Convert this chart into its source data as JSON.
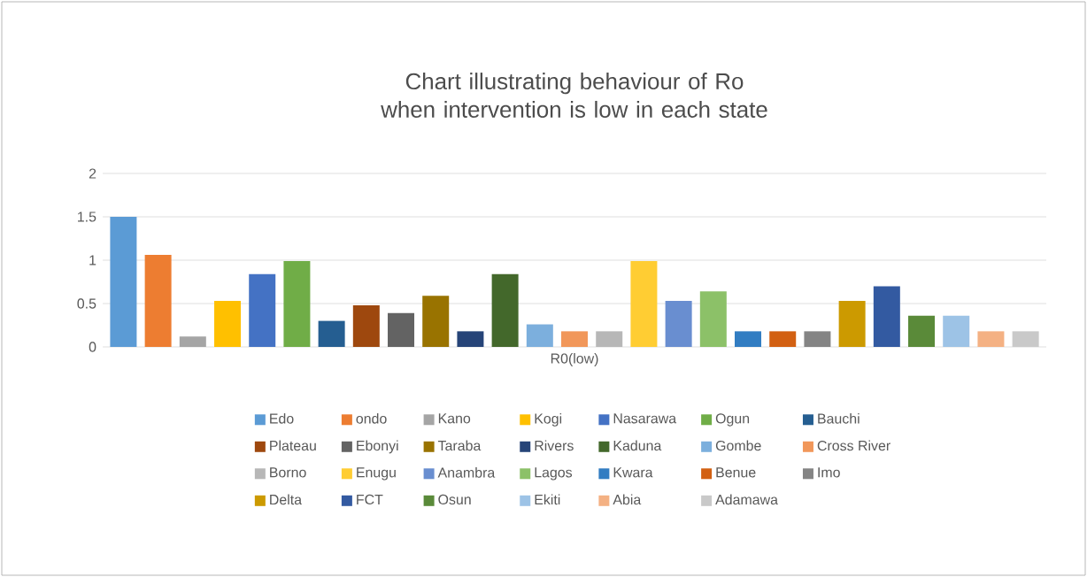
{
  "chart_data": {
    "type": "bar",
    "title": "Chart illustrating behaviour of Ro when intervention is low in each state",
    "categories": [
      "R0(low)"
    ],
    "series": [
      {
        "name": "Edo",
        "color": "#5b9bd5",
        "values": [
          1.5
        ]
      },
      {
        "name": "ondo",
        "color": "#ed7d31",
        "values": [
          1.06
        ]
      },
      {
        "name": "Kano",
        "color": "#a5a5a5",
        "values": [
          0.12
        ]
      },
      {
        "name": "Kogi",
        "color": "#ffc000",
        "values": [
          0.53
        ]
      },
      {
        "name": "Nasarawa",
        "color": "#4472c4",
        "values": [
          0.84
        ]
      },
      {
        "name": "Ogun",
        "color": "#70ad47",
        "values": [
          0.99
        ]
      },
      {
        "name": "Bauchi",
        "color": "#255e91",
        "values": [
          0.3
        ]
      },
      {
        "name": "Plateau",
        "color": "#9e480e",
        "values": [
          0.48
        ]
      },
      {
        "name": "Ebonyi",
        "color": "#636363",
        "values": [
          0.39
        ]
      },
      {
        "name": "Taraba",
        "color": "#997300",
        "values": [
          0.59
        ]
      },
      {
        "name": "Rivers",
        "color": "#264478",
        "values": [
          0.18
        ]
      },
      {
        "name": "Kaduna",
        "color": "#43682b",
        "values": [
          0.84
        ]
      },
      {
        "name": "Gombe",
        "color": "#7cafdd",
        "values": [
          0.26
        ]
      },
      {
        "name": "Cross River",
        "color": "#f1975a",
        "values": [
          0.18
        ]
      },
      {
        "name": "Borno",
        "color": "#b7b7b7",
        "values": [
          0.18
        ]
      },
      {
        "name": "Enugu",
        "color": "#ffcd33",
        "values": [
          0.99
        ]
      },
      {
        "name": "Anambra",
        "color": "#698ed0",
        "values": [
          0.53
        ]
      },
      {
        "name": "Lagos",
        "color": "#8cc168",
        "values": [
          0.64
        ]
      },
      {
        "name": "Kwara",
        "color": "#327dc2",
        "values": [
          0.18
        ]
      },
      {
        "name": "Benue",
        "color": "#d26012",
        "values": [
          0.18
        ]
      },
      {
        "name": "Imo",
        "color": "#848484",
        "values": [
          0.18
        ]
      },
      {
        "name": "Delta",
        "color": "#cc9a00",
        "values": [
          0.53
        ]
      },
      {
        "name": "FCT",
        "color": "#335aa1",
        "values": [
          0.7
        ]
      },
      {
        "name": "Osun",
        "color": "#5a8a39",
        "values": [
          0.36
        ]
      },
      {
        "name": "Ekiti",
        "color": "#9dc3e6",
        "values": [
          0.36
        ]
      },
      {
        "name": "Abia",
        "color": "#f4b183",
        "values": [
          0.18
        ]
      },
      {
        "name": "Adamawa",
        "color": "#c9c9c9",
        "values": [
          0.18
        ]
      }
    ],
    "ylim": [
      0,
      2
    ],
    "yticks": [
      0,
      0.5,
      1,
      1.5,
      2
    ],
    "grid": "y",
    "legend": "bottom"
  }
}
